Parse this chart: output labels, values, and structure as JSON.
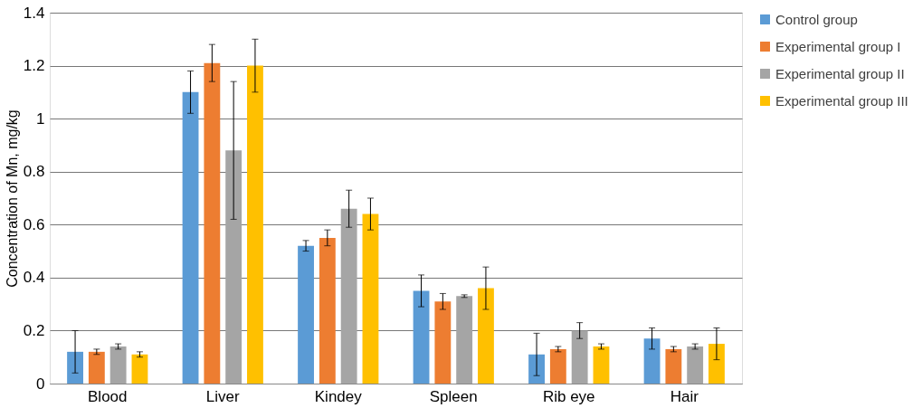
{
  "chart_data": {
    "type": "bar",
    "ylabel": "Concentration of Mn, mg/kg",
    "categories": [
      "Blood",
      "Liver",
      "Kindey",
      "Spleen",
      "Rib eye",
      "Hair"
    ],
    "series": [
      {
        "name": "Control group",
        "color": "#5b9bd5",
        "values": [
          0.12,
          1.1,
          0.52,
          0.35,
          0.11,
          0.17
        ],
        "errors": [
          0.08,
          0.08,
          0.02,
          0.06,
          0.08,
          0.04
        ]
      },
      {
        "name": "Experimental group I",
        "color": "#ed7d31",
        "values": [
          0.12,
          1.21,
          0.55,
          0.31,
          0.13,
          0.13
        ],
        "errors": [
          0.01,
          0.07,
          0.03,
          0.03,
          0.01,
          0.01
        ]
      },
      {
        "name": "Experimental group II",
        "color": "#a5a5a5",
        "values": [
          0.14,
          0.88,
          0.66,
          0.33,
          0.2,
          0.14
        ],
        "errors": [
          0.01,
          0.26,
          0.07,
          0.005,
          0.03,
          0.01
        ]
      },
      {
        "name": "Experimental group III",
        "color": "#ffc000",
        "values": [
          0.11,
          1.2,
          0.64,
          0.36,
          0.14,
          0.15
        ],
        "errors": [
          0.01,
          0.1,
          0.06,
          0.08,
          0.01,
          0.06
        ]
      }
    ],
    "ylim": [
      0,
      1.4
    ],
    "yticks": [
      0,
      0.2,
      0.4,
      0.6,
      0.8,
      1,
      1.2,
      1.4
    ],
    "grid": "y",
    "legend": "right"
  }
}
